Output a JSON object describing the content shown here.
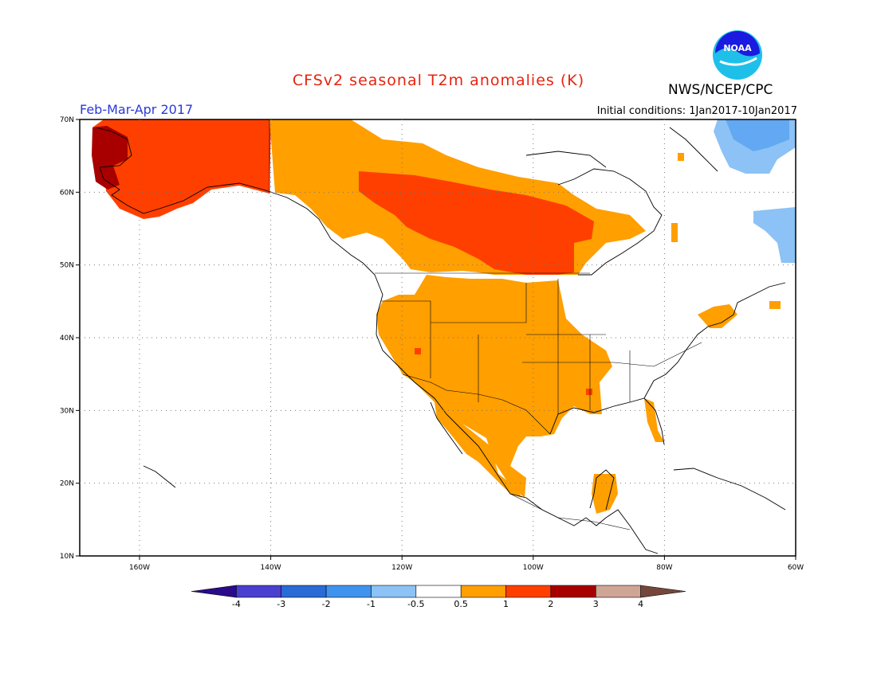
{
  "header": {
    "title": "CFSv2 seasonal T2m anomalies (K)",
    "agency": "NWS/NCEP/CPC",
    "period": "Feb-Mar-Apr 2017",
    "initial_conditions": "Initial conditions: 1Jan2017-10Jan2017",
    "logo_text": "NOAA"
  },
  "map": {
    "lat_labels": [
      "70N",
      "60N",
      "50N",
      "40N",
      "30N",
      "20N",
      "10N"
    ],
    "lon_labels": [
      "160W",
      "140W",
      "120W",
      "100W",
      "80W",
      "60W"
    ]
  },
  "legend": {
    "tick_labels": [
      "-4",
      "-3",
      "-2",
      "-1",
      "-0.5",
      "0.5",
      "1",
      "2",
      "3",
      "4"
    ],
    "colors": [
      "#2b0b8c",
      "#4a3fcf",
      "#2a6ad6",
      "#3f93ee",
      "#8cc2f5",
      "#ffffff",
      "#ff9f00",
      "#ff3f00",
      "#a80000",
      "#cfa596",
      "#75473a"
    ]
  },
  "anomaly_colors": {
    "warm_05_1": "#ff9f00",
    "warm_1_2": "#ff3f00",
    "warm_2_3": "#a80000",
    "cool_05_1": "#8cc2f5",
    "cool_1_2": "#3f93ee"
  }
}
